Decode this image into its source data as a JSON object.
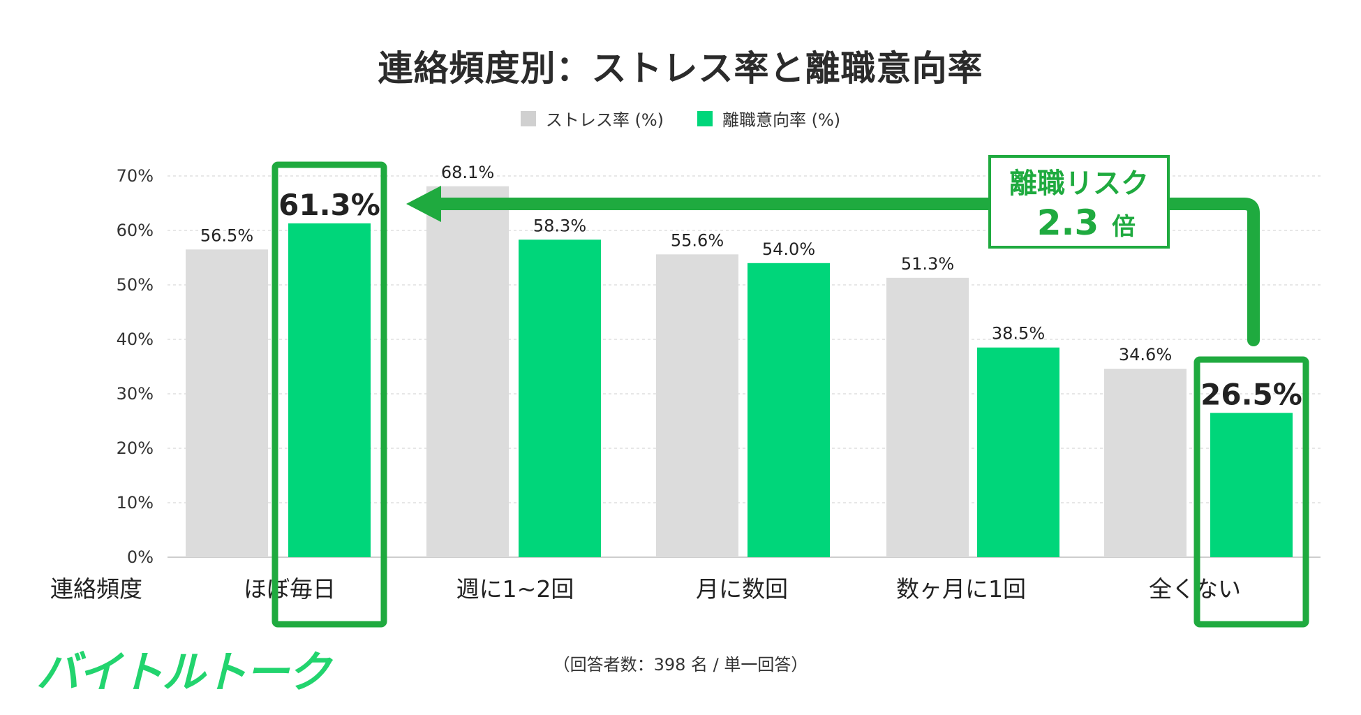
{
  "chart_data": {
    "type": "bar",
    "title": "連絡頻度別：ストレス率と離職意向率",
    "xlabel": "連絡頻度",
    "ylabel": "",
    "ylim": [
      0,
      70
    ],
    "yticks": [
      "0%",
      "10%",
      "20%",
      "30%",
      "40%",
      "50%",
      "60%",
      "70%"
    ],
    "grid": true,
    "legend_position": "top-center",
    "categories": [
      "ほぼ毎日",
      "週に1~2回",
      "月に数回",
      "数ヶ月に1回",
      "全くない"
    ],
    "series": [
      {
        "name": "ストレス率 (%)",
        "color": "#dcdcdc",
        "values": [
          56.5,
          68.1,
          55.6,
          51.3,
          34.6
        ],
        "labels": [
          "56.5%",
          "68.1%",
          "55.6%",
          "51.3%",
          "34.6%"
        ]
      },
      {
        "name": "離職意向率 (%)",
        "color": "#00d67a",
        "values": [
          61.3,
          58.3,
          54.0,
          38.5,
          26.5
        ],
        "labels": [
          "61.3%",
          "58.3%",
          "54.0%",
          "38.5%",
          "26.5%"
        ]
      }
    ],
    "highlighted_categories": [
      "ほぼ毎日",
      "全くない"
    ],
    "annotation": {
      "line1": "離職リスク",
      "value": "2.3",
      "unit": "倍"
    }
  },
  "colors": {
    "stress": "#dcdcdc",
    "turnover": "#00d67a",
    "highlight": "#1faa3f",
    "logo": "#22d46e"
  },
  "logo_text": "バイトルトーク",
  "footnote": "（回答者数：398 名 / 単一回答）"
}
